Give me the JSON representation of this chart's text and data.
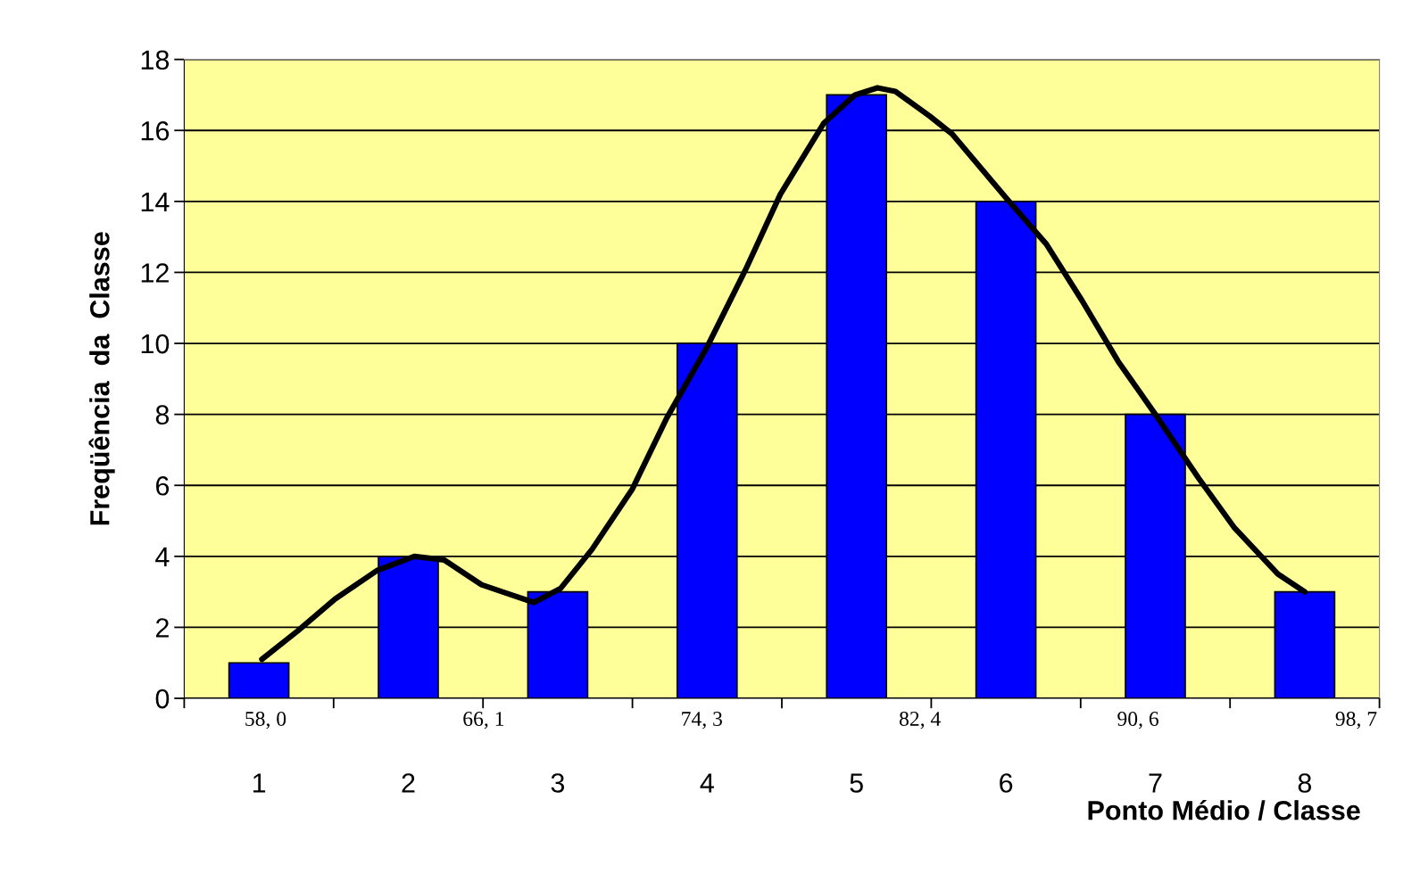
{
  "chart_data": {
    "type": "bar",
    "xlabel": "Ponto Médio / Classe",
    "ylabel": "Freqüência  da  Classe",
    "x": [
      1,
      2,
      3,
      4,
      5,
      6,
      7,
      8
    ],
    "series": [
      {
        "color": "#0000ff",
        "values": [
          1,
          4,
          3,
          10,
          17,
          14,
          8,
          3
        ]
      },
      {
        "type": "line",
        "color": "#000000",
        "x": [
          1.02,
          1.26,
          1.51,
          1.79,
          2.04,
          2.24,
          2.49,
          2.63,
          2.84,
          3.02,
          3.23,
          3.5,
          3.73,
          4.0,
          4.26,
          4.49,
          4.78,
          4.99,
          5.14,
          5.26,
          5.49,
          5.64,
          6.0,
          6.27,
          6.51,
          6.75,
          7.0,
          7.29,
          7.53,
          7.82,
          8.0
        ],
        "values": [
          1.1,
          1.9,
          2.8,
          3.6,
          4.0,
          3.9,
          3.2,
          3.0,
          2.7,
          3.1,
          4.2,
          5.9,
          7.9,
          9.9,
          12.1,
          14.2,
          16.2,
          17.0,
          17.2,
          17.1,
          16.4,
          15.9,
          14.1,
          12.8,
          11.2,
          9.5,
          8.0,
          6.2,
          4.8,
          3.5,
          3.0
        ]
      }
    ],
    "xlim": [
      0.5,
      8.5
    ],
    "xticks": [
      {
        "value": 0.5,
        "label": null
      },
      {
        "value": 1,
        "label": "1"
      },
      {
        "value": 1.5,
        "label": null
      },
      {
        "value": 2,
        "label": "2"
      },
      {
        "value": 2.5,
        "label": null
      },
      {
        "value": 3,
        "label": "3"
      },
      {
        "value": 3.5,
        "label": null
      },
      {
        "value": 4,
        "label": "4"
      },
      {
        "value": 4.5,
        "label": null
      },
      {
        "value": 5,
        "label": "5"
      },
      {
        "value": 5.5,
        "label": null
      },
      {
        "value": 6,
        "label": "6"
      },
      {
        "value": 6.5,
        "label": null
      },
      {
        "value": 7,
        "label": "7"
      },
      {
        "value": 7.5,
        "label": null
      },
      {
        "value": 8,
        "label": "8"
      },
      {
        "value": 8.5,
        "label": null
      }
    ],
    "ylim": [
      0,
      18
    ],
    "yticks": [
      0,
      2,
      4,
      6,
      8,
      10,
      12,
      14,
      16,
      18
    ],
    "grid": "y",
    "annotations": [
      "58, 0",
      "66, 1",
      "74, 3",
      "82, 4",
      "90, 6",
      "98, 7"
    ]
  }
}
